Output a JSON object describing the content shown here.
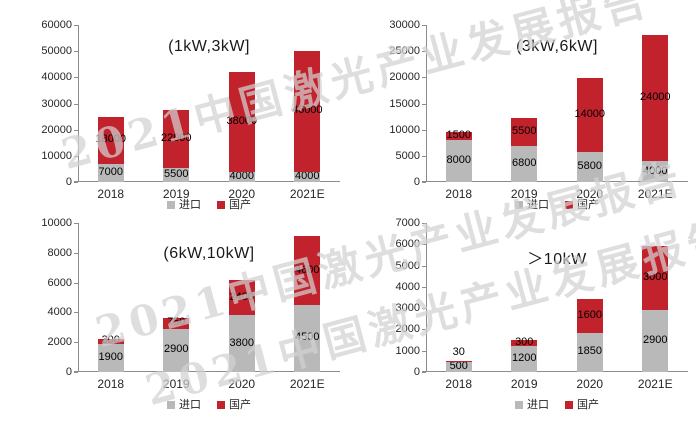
{
  "watermark": {
    "text": "2021中国激光产业发展报告"
  },
  "colors": {
    "import": "#B9B9B9",
    "domestic": "#C1222B",
    "axis": "#8C8C8C",
    "data_label": "#000000",
    "tick_text": "#262626"
  },
  "legend": {
    "import_label": "进口",
    "domestic_label": "国产"
  },
  "chart_data": [
    {
      "type": "bar",
      "stacked": true,
      "title": "(1kW,3kW]",
      "categories": [
        "2018",
        "2019",
        "2020",
        "2021E"
      ],
      "series": [
        {
          "name": "进口",
          "role": "import",
          "color": "#B9B9B9",
          "values": [
            7000,
            5500,
            4000,
            4000
          ]
        },
        {
          "name": "国产",
          "role": "domestic",
          "color": "#C1222B",
          "values": [
            18000,
            22000,
            38000,
            46000
          ]
        }
      ],
      "ylim": [
        0,
        60000
      ],
      "ytick_step": 10000,
      "grid": false,
      "legend_position": "bottom"
    },
    {
      "type": "bar",
      "stacked": true,
      "title": "(3kW,6kW]",
      "categories": [
        "2018",
        "2019",
        "2020",
        "2021E"
      ],
      "series": [
        {
          "name": "进口",
          "role": "import",
          "color": "#B9B9B9",
          "values": [
            8000,
            6800,
            5800,
            4000
          ]
        },
        {
          "name": "国产",
          "role": "domestic",
          "color": "#C1222B",
          "values": [
            1500,
            5500,
            14000,
            24000
          ]
        }
      ],
      "ylim": [
        0,
        30000
      ],
      "ytick_step": 5000,
      "grid": false,
      "legend_position": "bottom"
    },
    {
      "type": "bar",
      "stacked": true,
      "title": "(6kW,10kW]",
      "categories": [
        "2018",
        "2019",
        "2020",
        "2021E"
      ],
      "series": [
        {
          "name": "进口",
          "role": "import",
          "color": "#B9B9B9",
          "values": [
            1900,
            2900,
            3800,
            4500
          ]
        },
        {
          "name": "国产",
          "role": "domestic",
          "color": "#C1222B",
          "values": [
            300,
            750,
            2400,
            4600
          ]
        }
      ],
      "ylim": [
        0,
        10000
      ],
      "ytick_step": 2000,
      "grid": false,
      "legend_position": "bottom"
    },
    {
      "type": "bar",
      "stacked": true,
      "title": "＞10kW",
      "categories": [
        "2018",
        "2019",
        "2020",
        "2021E"
      ],
      "series": [
        {
          "name": "进口",
          "role": "import",
          "color": "#B9B9B9",
          "values": [
            500,
            1200,
            1850,
            2900
          ]
        },
        {
          "name": "国产",
          "role": "domestic",
          "color": "#C1222B",
          "values": [
            30,
            300,
            1600,
            3000
          ]
        }
      ],
      "ylim": [
        0,
        7000
      ],
      "ytick_step": 1000,
      "grid": false,
      "legend_position": "bottom"
    }
  ]
}
